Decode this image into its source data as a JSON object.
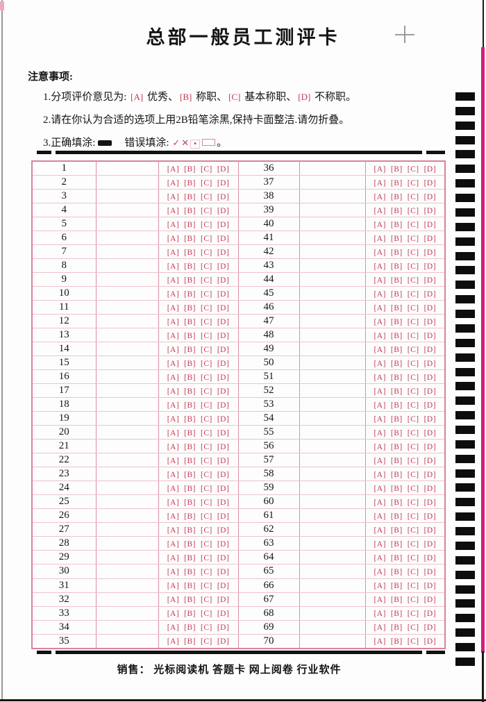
{
  "page": {
    "title": "总部一般员工测评卡",
    "footer": "销售： 光标阅读机  答题卡  网上阅卷  行业软件"
  },
  "notice": {
    "heading": "注意事项:",
    "item1": {
      "prefix": "1.分项评价意见为: ",
      "options": [
        {
          "key": "[A]",
          "text": "优秀",
          "sep": "、"
        },
        {
          "key": "[B]",
          "text": "称职",
          "sep": "、"
        },
        {
          "key": "[C]",
          "text": "基本称职",
          "sep": "、"
        },
        {
          "key": "[D]",
          "text": "不称职",
          "sep": "。"
        }
      ]
    },
    "item2": "2.请在你认为合适的选项上用2B铅笔涂黑,保持卡面整洁.请勿折叠。",
    "item3": {
      "correct_label": "3.正确填涂:",
      "wrong_label": "错误填涂:",
      "marks": [
        {
          "name": "check-mark",
          "glyph": "✓"
        },
        {
          "name": "cross-mark",
          "glyph": "✕"
        },
        {
          "name": "dot-mark",
          "glyph": "•"
        },
        {
          "name": "hollow-rect-mark",
          "glyph": ""
        }
      ],
      "end": "。"
    }
  },
  "answer_grid": {
    "brackets": {
      "left": "[",
      "right": "]"
    },
    "options": [
      "A",
      "B",
      "C",
      "D"
    ],
    "rows": [
      {
        "l": "1",
        "r": "36"
      },
      {
        "l": "2",
        "r": "37"
      },
      {
        "l": "3",
        "r": "38"
      },
      {
        "l": "4",
        "r": "39"
      },
      {
        "l": "5",
        "r": "40"
      },
      {
        "l": "6",
        "r": "41"
      },
      {
        "l": "7",
        "r": "42"
      },
      {
        "l": "8",
        "r": "43"
      },
      {
        "l": "9",
        "r": "44"
      },
      {
        "l": "10",
        "r": "45"
      },
      {
        "l": "11",
        "r": "46"
      },
      {
        "l": "12",
        "r": "47"
      },
      {
        "l": "13",
        "r": "48"
      },
      {
        "l": "14",
        "r": "49"
      },
      {
        "l": "15",
        "r": "50"
      },
      {
        "l": "16",
        "r": "51"
      },
      {
        "l": "17",
        "r": "52"
      },
      {
        "l": "18",
        "r": "53"
      },
      {
        "l": "19",
        "r": "54"
      },
      {
        "l": "20",
        "r": "55"
      },
      {
        "l": "21",
        "r": "56"
      },
      {
        "l": "22",
        "r": "57"
      },
      {
        "l": "23",
        "r": "58"
      },
      {
        "l": "24",
        "r": "59"
      },
      {
        "l": "25",
        "r": "60"
      },
      {
        "l": "26",
        "r": "61"
      },
      {
        "l": "27",
        "r": "62"
      },
      {
        "l": "28",
        "r": "63"
      },
      {
        "l": "29",
        "r": "64"
      },
      {
        "l": "30",
        "r": "65"
      },
      {
        "l": "31",
        "r": "66"
      },
      {
        "l": "32",
        "r": "67"
      },
      {
        "l": "33",
        "r": "68"
      },
      {
        "l": "34",
        "r": "69"
      },
      {
        "l": "35",
        "r": "70"
      }
    ]
  },
  "timing_marks": {
    "count": 40
  },
  "colors": {
    "option_red": "#c23a51",
    "grid_border_pink": "#dd8ca1",
    "grid_line_light_pink": "#eec2cc",
    "edge_magenta": "#cf1f7b",
    "mark_black": "#0d0d0d"
  }
}
